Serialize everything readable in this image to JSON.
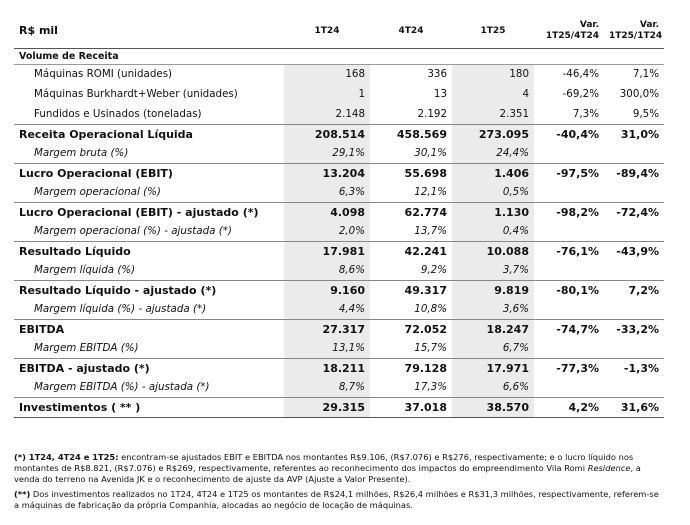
{
  "header": {
    "label": "R$ mil",
    "col_1t24": "1T24",
    "col_4t24": "4T24",
    "col_1t25": "1T25",
    "var1_line1": "Var.",
    "var1_line2": "1T25/4T24",
    "var2_line1": "Var.",
    "var2_line2": "1T25/1T24"
  },
  "section_title": "Volume de Receita",
  "rows": [
    {
      "label": "Máquinas ROMI (unidades)",
      "v1": "168",
      "v2": "336",
      "v3": "180",
      "var1": "-46,4%",
      "var2": "7,1%"
    },
    {
      "label": "Máquinas Burkhardt+Weber (unidades)",
      "v1": "1",
      "v2": "13",
      "v3": "4",
      "var1": "-69,2%",
      "var2": "300,0%"
    },
    {
      "label": "Fundidos e Usinados (toneladas)",
      "v1": "2.148",
      "v2": "2.192",
      "v3": "2.351",
      "var1": "7,3%",
      "var2": "9,5%"
    },
    {
      "label": "Receita Operacional Líquida",
      "v1": "208.514",
      "v2": "458.569",
      "v3": "273.095",
      "var1": "-40,4%",
      "var2": "31,0%"
    },
    {
      "label": "Margem bruta (%)",
      "v1": "29,1%",
      "v2": "30,1%",
      "v3": "24,4%",
      "var1": "",
      "var2": ""
    },
    {
      "label": "Lucro Operacional (EBIT)",
      "v1": "13.204",
      "v2": "55.698",
      "v3": "1.406",
      "var1": "-97,5%",
      "var2": "-89,4%"
    },
    {
      "label": "Margem operacional  (%)",
      "v1": "6,3%",
      "v2": "12,1%",
      "v3": "0,5%",
      "var1": "",
      "var2": ""
    },
    {
      "label": "Lucro Operacional (EBIT) - ajustado (*)",
      "v1": "4.098",
      "v2": "62.774",
      "v3": "1.130",
      "var1": "-98,2%",
      "var2": "-72,4%"
    },
    {
      "label": "Margem operacional  (%) - ajustada (*)",
      "v1": "2,0%",
      "v2": "13,7%",
      "v3": "0,4%",
      "var1": "",
      "var2": ""
    },
    {
      "label": "Resultado Líquido",
      "v1": "17.981",
      "v2": "42.241",
      "v3": "10.088",
      "var1": "-76,1%",
      "var2": "-43,9%"
    },
    {
      "label": "Margem líquida (%)",
      "v1": "8,6%",
      "v2": "9,2%",
      "v3": "3,7%",
      "var1": "",
      "var2": ""
    },
    {
      "label": "Resultado Líquido - ajustado (*)",
      "v1": "9.160",
      "v2": "49.317",
      "v3": "9.819",
      "var1": "-80,1%",
      "var2": "7,2%"
    },
    {
      "label": "Margem líquida (%) - ajustada (*)",
      "v1": "4,4%",
      "v2": "10,8%",
      "v3": "3,6%",
      "var1": "",
      "var2": ""
    },
    {
      "label": "EBITDA",
      "v1": "27.317",
      "v2": "72.052",
      "v3": "18.247",
      "var1": "-74,7%",
      "var2": "-33,2%"
    },
    {
      "label": "Margem EBITDA (%)",
      "v1": "13,1%",
      "v2": "15,7%",
      "v3": "6,7%",
      "var1": "",
      "var2": ""
    },
    {
      "label": "EBITDA - ajustado (*)",
      "v1": "18.211",
      "v2": "79.128",
      "v3": "17.971",
      "var1": "-77,3%",
      "var2": "-1,3%"
    },
    {
      "label": "Margem EBITDA (%) - ajustada (*)",
      "v1": "8,7%",
      "v2": "17,3%",
      "v3": "6,6%",
      "var1": "",
      "var2": ""
    },
    {
      "label": "Investimentos ( ** )",
      "v1": "29.315",
      "v2": "37.018",
      "v3": "38.570",
      "var1": "4,2%",
      "var2": "31,6%"
    }
  ],
  "notes": {
    "n1_marker": "(*) 1T24, 4T24 e 1T25:",
    "n1_text_a": " encontram-se ajustados EBIT e EBITDA nos montantes R$9.106, (R$7.076) e R$276, respectivamente; e o lucro líquido nos montantes de R$8.821, (R$7.076) e R$269, respectivamente, referentes ao reconhecimento dos impactos do empreendimento Vila Romi ",
    "n1_italic": "Residence",
    "n1_text_b": ", a venda do terreno na Avenida JK e o reconhecimento de ajuste da AVP (Ajuste a Valor Presente).",
    "n2_marker": "(**)",
    "n2_text": " Dos investimentos realizados no 1T24, 4T24 e 1T25 os montantes de R$24,1 milhões, R$26,4 milhões e R$31,3 milhões, respectivamente, referem-se a máquinas de fabricação da própria Companhia, alocadas ao negócio de locação de máquinas."
  }
}
